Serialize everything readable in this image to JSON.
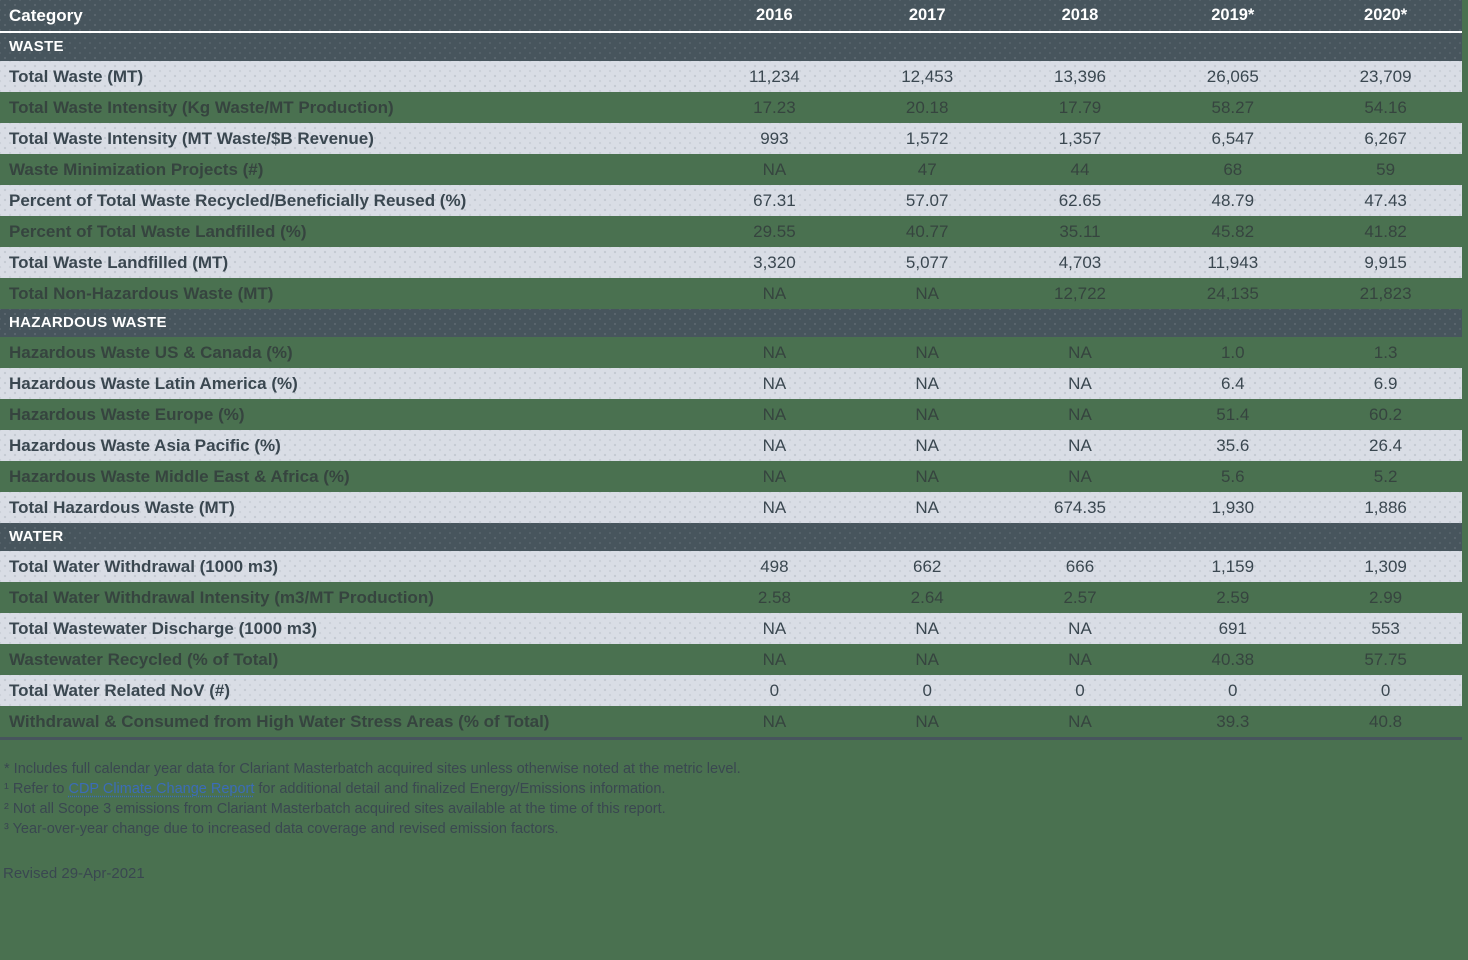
{
  "table": {
    "header": {
      "category_label": "Category",
      "years": [
        "2016",
        "2017",
        "2018",
        "2019*",
        "2020*"
      ]
    },
    "sections": [
      {
        "title": "WASTE",
        "rows": [
          {
            "label": "Total Waste (MT)",
            "values": [
              "11,234",
              "12,453",
              "13,396",
              "26,065",
              "23,709"
            ]
          },
          {
            "label": "Total Waste Intensity (Kg Waste/MT Production)",
            "values": [
              "17.23",
              "20.18",
              "17.79",
              "58.27",
              "54.16"
            ]
          },
          {
            "label": "Total Waste Intensity (MT Waste/$B Revenue)",
            "values": [
              "993",
              "1,572",
              "1,357",
              "6,547",
              "6,267"
            ]
          },
          {
            "label": "Waste Minimization Projects (#)",
            "values": [
              "NA",
              "47",
              "44",
              "68",
              "59"
            ]
          },
          {
            "label": "Percent of Total Waste Recycled/Beneficially Reused (%)",
            "values": [
              "67.31",
              "57.07",
              "62.65",
              "48.79",
              "47.43"
            ]
          },
          {
            "label": "Percent of Total Waste Landfilled (%)",
            "values": [
              "29.55",
              "40.77",
              "35.11",
              "45.82",
              "41.82"
            ]
          },
          {
            "label": "Total Waste Landfilled (MT)",
            "values": [
              "3,320",
              "5,077",
              "4,703",
              "11,943",
              "9,915"
            ]
          },
          {
            "label": "Total Non-Hazardous Waste (MT)",
            "values": [
              "NA",
              "NA",
              "12,722",
              "24,135",
              "21,823"
            ]
          }
        ]
      },
      {
        "title": "HAZARDOUS WASTE",
        "rows": [
          {
            "label": "Hazardous Waste US & Canada (%)",
            "values": [
              "NA",
              "NA",
              "NA",
              "1.0",
              "1.3"
            ]
          },
          {
            "label": "Hazardous Waste Latin America (%)",
            "values": [
              "NA",
              "NA",
              "NA",
              "6.4",
              "6.9"
            ]
          },
          {
            "label": "Hazardous Waste Europe (%)",
            "values": [
              "NA",
              "NA",
              "NA",
              "51.4",
              "60.2"
            ]
          },
          {
            "label": "Hazardous Waste Asia Pacific (%)",
            "values": [
              "NA",
              "NA",
              "NA",
              "35.6",
              "26.4"
            ]
          },
          {
            "label": "Hazardous Waste Middle East & Africa (%)",
            "values": [
              "NA",
              "NA",
              "NA",
              "5.6",
              "5.2"
            ]
          },
          {
            "label": "Total Hazardous Waste (MT)",
            "values": [
              "NA",
              "NA",
              "674.35",
              "1,930",
              "1,886"
            ]
          }
        ]
      },
      {
        "title": "WATER",
        "rows": [
          {
            "label": "Total Water Withdrawal (1000 m3)",
            "values": [
              "498",
              "662",
              "666",
              "1,159",
              "1,309"
            ]
          },
          {
            "label": "Total Water Withdrawal Intensity (m3/MT Production)",
            "values": [
              "2.58",
              "2.64",
              "2.57",
              "2.59",
              "2.99"
            ]
          },
          {
            "label": "Total Wastewater Discharge (1000 m3)",
            "values": [
              "NA",
              "NA",
              "NA",
              "691",
              "553"
            ]
          },
          {
            "label": "Wastewater Recycled (% of Total)",
            "values": [
              "NA",
              "NA",
              "NA",
              "40.38",
              "57.75"
            ]
          },
          {
            "label": "Total Water Related NoV (#)",
            "values": [
              "0",
              "0",
              "0",
              "0",
              "0"
            ]
          },
          {
            "label": "Withdrawal & Consumed from High Water Stress Areas (% of Total)",
            "values": [
              "NA",
              "NA",
              "NA",
              "39.3",
              "40.8"
            ]
          }
        ]
      }
    ]
  },
  "footnotes": {
    "line1": "* Includes full calendar year data for Clariant Masterbatch acquired sites unless otherwise noted at the metric level.",
    "line2_prefix": "¹ Refer to ",
    "line2_link": "CDP Climate Change Report",
    "line2_suffix": " for additional detail and finalized Energy/Emissions information.",
    "line3": "² Not all Scope 3 emissions from Clariant Masterbatch acquired sites available at the time of this report.",
    "line4": "³ Year-over-year change due to increased data coverage and revised emission factors."
  },
  "revised": "Revised 29-Apr-2021",
  "colors": {
    "background": "#4a7150",
    "header_bar": "#47555d",
    "light_row": "#d9dde5",
    "text_dark": "#3a4750",
    "link": "#3b6cb8"
  }
}
